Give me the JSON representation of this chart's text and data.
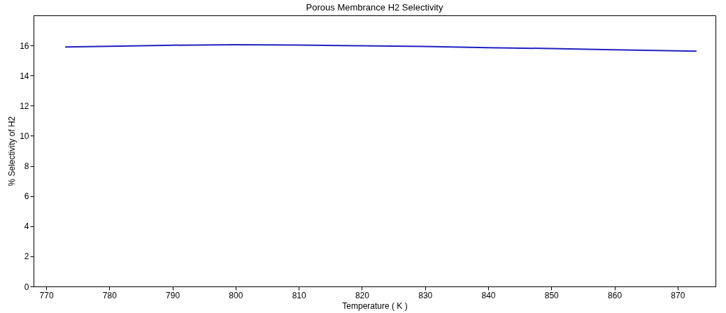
{
  "chart_data": {
    "type": "line",
    "title": "Porous Membrance H2 Selectivity",
    "xlabel": "Temperature ( K )",
    "ylabel": "% Selectivity of H2",
    "x": [
      773,
      780,
      790,
      800,
      810,
      820,
      830,
      840,
      850,
      860,
      873
    ],
    "series": [
      {
        "color": "#2020c0",
        "values": [
          15.9,
          15.95,
          16.02,
          16.05,
          16.03,
          15.98,
          15.93,
          15.85,
          15.8,
          15.72,
          15.62
        ]
      }
    ],
    "xlim": [
      768,
      876
    ],
    "xticks": [
      770,
      780,
      790,
      800,
      810,
      820,
      830,
      840,
      850,
      860,
      870
    ],
    "ylim": [
      0,
      18
    ],
    "yticks": [
      0,
      2,
      4,
      6,
      8,
      10,
      12,
      14,
      16
    ],
    "grid": false,
    "legend": false,
    "marker": "none",
    "line_style": "solid"
  }
}
